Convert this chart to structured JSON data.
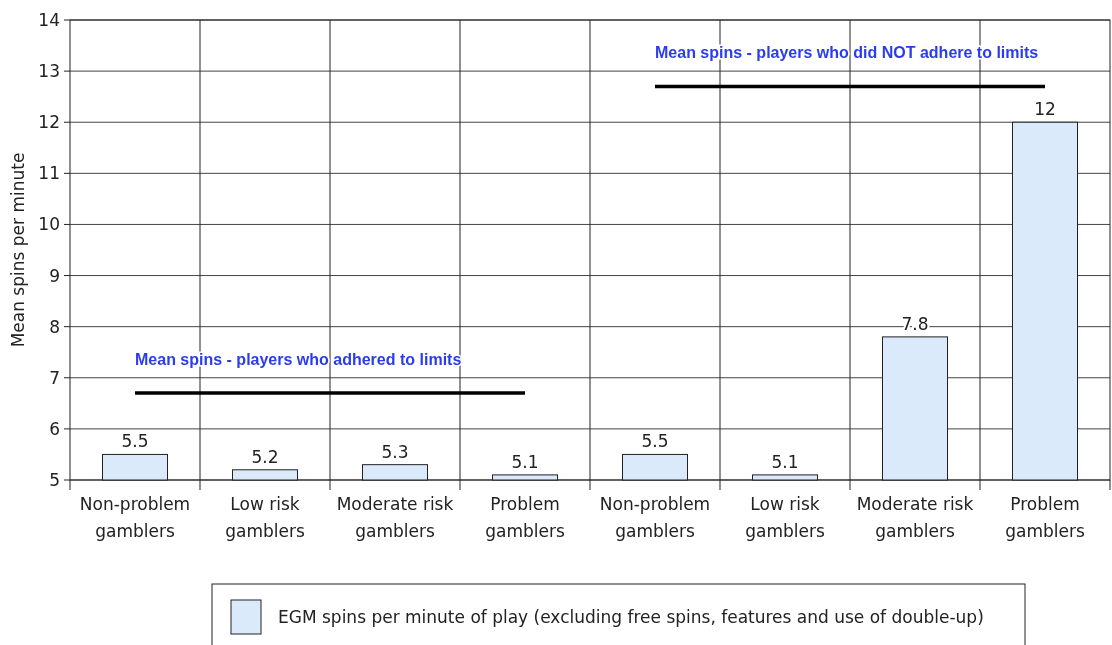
{
  "chart_data": {
    "type": "bar",
    "ylabel": "Mean spins per minute",
    "categories": [
      "Non-problem gamblers",
      "Low risk gamblers",
      "Moderate risk gamblers",
      "Problem gamblers",
      "Non-problem gamblers",
      "Low risk gamblers",
      "Moderate risk gamblers",
      "Problem gamblers"
    ],
    "series": [
      {
        "name": "EGM spins per minute of play (excluding free spins, features and use of double-up)",
        "color": "#dbeafb",
        "values": [
          5.5,
          5.2,
          5.3,
          5.1,
          5.5,
          5.1,
          7.8,
          12
        ],
        "value_labels": [
          "5.5",
          "5.2",
          "5.3",
          "5.1",
          "5.5",
          "5.1",
          "7.8",
          "12"
        ]
      },
      {
        "type": "line",
        "name": "Mean spins - players who adhered to limits",
        "color": "#000000",
        "values": [
          6.7,
          6.7,
          6.7,
          6.7,
          null,
          null,
          null,
          null
        ]
      },
      {
        "type": "line",
        "name": "Mean spins - players who did NOT adhere to limits",
        "color": "#000000",
        "values": [
          null,
          null,
          null,
          null,
          12.7,
          12.7,
          12.7,
          12.7
        ]
      }
    ],
    "ylim": [
      5,
      14
    ],
    "yticks": [
      5,
      6,
      7,
      8,
      9,
      10,
      11,
      12,
      13,
      14
    ],
    "grid": true,
    "legend": "bottom"
  }
}
